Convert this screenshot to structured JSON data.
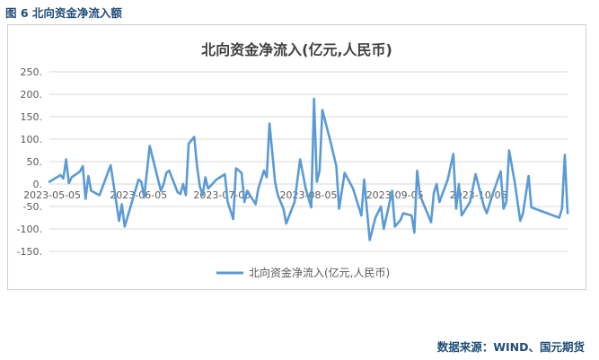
{
  "figure_caption": "图 6 北向资金净流入额",
  "source_note": "数据来源：WIND、国元期货",
  "colors": {
    "series": "#5b9bd5",
    "grid": "#d9d9d9",
    "text": "#595959",
    "caption": "#1f4e79"
  },
  "chart_data": {
    "type": "line",
    "title": "北向资金净流入(亿元,人民币)",
    "xlabel": "",
    "ylabel": "",
    "ylim": [
      -150,
      250
    ],
    "yticks": [
      "250.",
      "200.",
      "150.",
      "100.",
      "50.",
      "0.",
      "-50.",
      "-100.",
      "-150."
    ],
    "ytick_values": [
      250,
      200,
      150,
      100,
      50,
      0,
      -50,
      -100,
      -150
    ],
    "xticks": [
      "2023-05-05",
      "2023-06-05",
      "2023-07-05",
      "2023-08-05",
      "2023-09-05",
      "2023-10-05"
    ],
    "grid": true,
    "legend_position": "bottom",
    "series": [
      {
        "name": "北向资金净流入(亿元,人民币)",
        "values": [
          [
            "2023-05-04",
            5
          ],
          [
            "2023-05-08",
            20
          ],
          [
            "2023-05-09",
            12
          ],
          [
            "2023-05-10",
            55
          ],
          [
            "2023-05-11",
            2
          ],
          [
            "2023-05-12",
            15
          ],
          [
            "2023-05-15",
            28
          ],
          [
            "2023-05-16",
            40
          ],
          [
            "2023-05-17",
            -33
          ],
          [
            "2023-05-18",
            18
          ],
          [
            "2023-05-19",
            -15
          ],
          [
            "2023-05-22",
            -25
          ],
          [
            "2023-05-26",
            42
          ],
          [
            "2023-05-29",
            -82
          ],
          [
            "2023-05-30",
            -45
          ],
          [
            "2023-05-31",
            -95
          ],
          [
            "2023-06-05",
            10
          ],
          [
            "2023-06-06",
            5
          ],
          [
            "2023-06-07",
            -30
          ],
          [
            "2023-06-09",
            85
          ],
          [
            "2023-06-13",
            -15
          ],
          [
            "2023-06-14",
            0
          ],
          [
            "2023-06-15",
            25
          ],
          [
            "2023-06-16",
            30
          ],
          [
            "2023-06-19",
            -18
          ],
          [
            "2023-06-20",
            -22
          ],
          [
            "2023-06-21",
            0
          ],
          [
            "2023-06-22",
            -25
          ],
          [
            "2023-06-23",
            90
          ],
          [
            "2023-06-25",
            105
          ],
          [
            "2023-06-26",
            40
          ],
          [
            "2023-06-27",
            -5
          ],
          [
            "2023-06-28",
            -25
          ],
          [
            "2023-06-29",
            15
          ],
          [
            "2023-06-30",
            -10
          ],
          [
            "2023-07-03",
            10
          ],
          [
            "2023-07-06",
            22
          ],
          [
            "2023-07-07",
            -40
          ],
          [
            "2023-07-09",
            -78
          ],
          [
            "2023-07-10",
            35
          ],
          [
            "2023-07-12",
            25
          ],
          [
            "2023-07-13",
            -40
          ],
          [
            "2023-07-14",
            -15
          ],
          [
            "2023-07-17",
            -45
          ],
          [
            "2023-07-18",
            -10
          ],
          [
            "2023-07-20",
            30
          ],
          [
            "2023-07-21",
            15
          ],
          [
            "2023-07-22",
            135
          ],
          [
            "2023-07-24",
            5
          ],
          [
            "2023-07-25",
            -25
          ],
          [
            "2023-07-27",
            -55
          ],
          [
            "2023-07-28",
            -88
          ],
          [
            "2023-07-31",
            -40
          ],
          [
            "2023-08-02",
            55
          ],
          [
            "2023-08-04",
            -10
          ],
          [
            "2023-08-06",
            -52
          ],
          [
            "2023-08-07",
            190
          ],
          [
            "2023-08-08",
            5
          ],
          [
            "2023-08-09",
            30
          ],
          [
            "2023-08-10",
            165
          ],
          [
            "2023-08-13",
            92
          ],
          [
            "2023-08-15",
            40
          ],
          [
            "2023-08-16",
            -55
          ],
          [
            "2023-08-18",
            25
          ],
          [
            "2023-08-21",
            -10
          ],
          [
            "2023-08-24",
            -70
          ],
          [
            "2023-08-25",
            10
          ],
          [
            "2023-08-27",
            -125
          ],
          [
            "2023-08-29",
            -75
          ],
          [
            "2023-08-31",
            -50
          ],
          [
            "2023-09-01",
            -100
          ],
          [
            "2023-09-04",
            -15
          ],
          [
            "2023-09-05",
            -95
          ],
          [
            "2023-09-07",
            -80
          ],
          [
            "2023-09-08",
            -65
          ],
          [
            "2023-09-11",
            -70
          ],
          [
            "2023-09-12",
            -108
          ],
          [
            "2023-09-13",
            30
          ],
          [
            "2023-09-14",
            -25
          ],
          [
            "2023-09-18",
            -85
          ],
          [
            "2023-09-19",
            -20
          ],
          [
            "2023-09-20",
            0
          ],
          [
            "2023-09-21",
            -40
          ],
          [
            "2023-09-24",
            10
          ],
          [
            "2023-09-26",
            67
          ],
          [
            "2023-09-27",
            -55
          ],
          [
            "2023-09-28",
            0
          ],
          [
            "2023-09-29",
            -70
          ],
          [
            "2023-10-02",
            -40
          ],
          [
            "2023-10-04",
            22
          ],
          [
            "2023-10-07",
            -50
          ],
          [
            "2023-10-08",
            -65
          ],
          [
            "2023-10-10",
            -25
          ],
          [
            "2023-10-13",
            28
          ],
          [
            "2023-10-14",
            -55
          ],
          [
            "2023-10-15",
            -40
          ],
          [
            "2023-10-16",
            75
          ],
          [
            "2023-10-18",
            5
          ],
          [
            "2023-10-20",
            -82
          ],
          [
            "2023-10-21",
            -65
          ],
          [
            "2023-10-23",
            18
          ],
          [
            "2023-10-24",
            -52
          ],
          [
            "2023-11-03",
            -75
          ],
          [
            "2023-11-04",
            -55
          ],
          [
            "2023-11-05",
            65
          ],
          [
            "2023-11-06",
            -65
          ]
        ]
      }
    ]
  }
}
